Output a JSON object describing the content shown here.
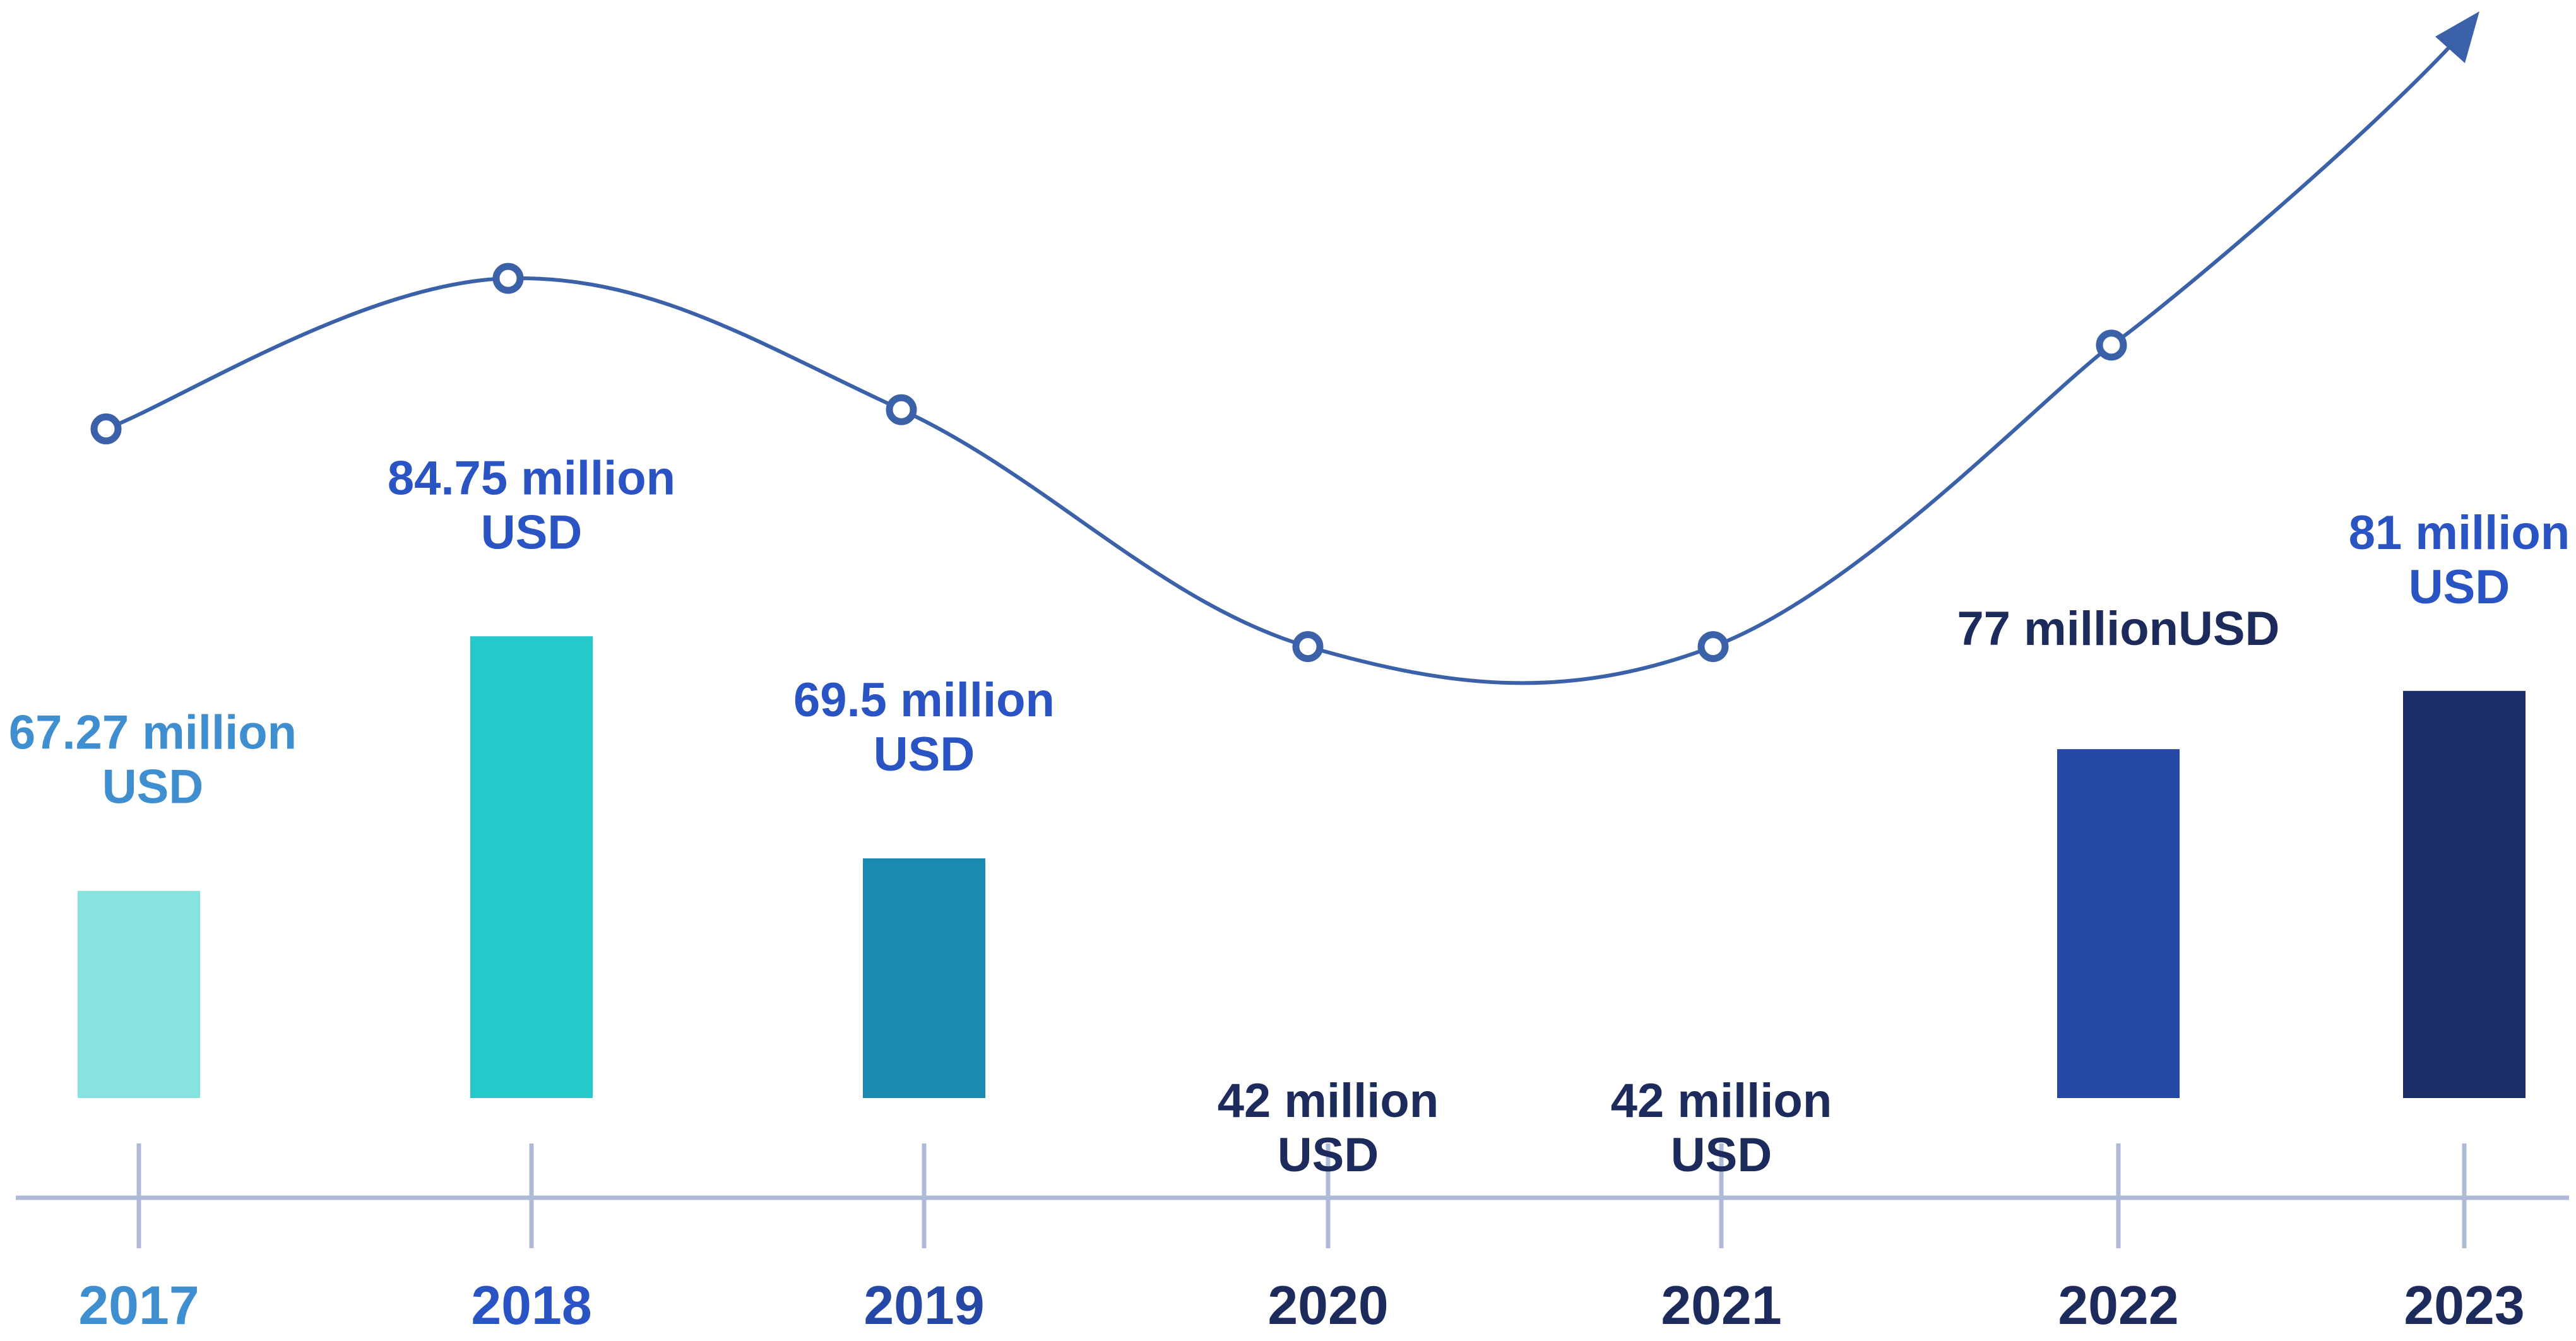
{
  "chart_data": {
    "type": "bar",
    "title": "",
    "xlabel": "",
    "ylabel": "",
    "unit": "million USD",
    "categories": [
      "2017",
      "2018",
      "2019",
      "2020",
      "2021",
      "2022",
      "2023"
    ],
    "values": [
      67.27,
      84.75,
      69.5,
      42,
      42,
      77,
      81
    ],
    "data_labels": [
      [
        "67.27 million",
        "USD"
      ],
      [
        "84.75 million",
        "USD"
      ],
      [
        "69.5 million",
        "USD"
      ],
      [
        "42 million",
        "USD"
      ],
      [
        "42 million",
        "USD"
      ],
      [
        "77 millionUSD"
      ],
      [
        "81 million",
        "USD"
      ]
    ],
    "bar_colors": [
      "#86E3E0",
      "#25C8CB",
      "#1B8AB0",
      "#7B84BD",
      "#325CCB",
      "#2548A6",
      "#1C2E6A"
    ],
    "label_colors": [
      "#3E8ED0",
      "#2A53C4",
      "#2A53C4",
      "#1C2A5C",
      "#1C2A5C",
      "#1C2A5C",
      "#2A53C4"
    ],
    "year_colors": [
      "#3E8ED0",
      "#2A53C4",
      "#2548A6",
      "#1C2A5C",
      "#1C2A5C",
      "#1C2A5C",
      "#1C2A5C"
    ],
    "trend_line": {
      "color": "#3B62A8",
      "marker": "hollow-circle",
      "ends_with_arrow": true,
      "trend_values": [
        67.27,
        84.75,
        69.5,
        42,
        42,
        77,
        81
      ]
    },
    "axis_color": "#AFBBD6",
    "grid": false,
    "legend": "none"
  }
}
